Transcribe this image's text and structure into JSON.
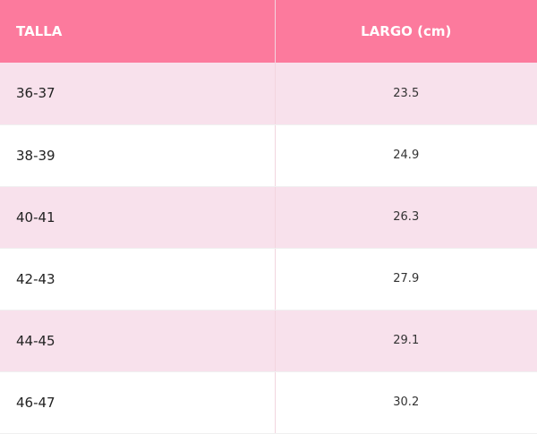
{
  "table": {
    "header": [
      "TALLA",
      "LARGO (cm)"
    ],
    "rows": [
      [
        "36-37",
        "23.5"
      ],
      [
        "38-39",
        "24.9"
      ],
      [
        "40-41",
        "26.3"
      ],
      [
        "42-43",
        "27.9"
      ],
      [
        "44-45",
        "29.1"
      ],
      [
        "46-47",
        "30.2"
      ]
    ]
  }
}
